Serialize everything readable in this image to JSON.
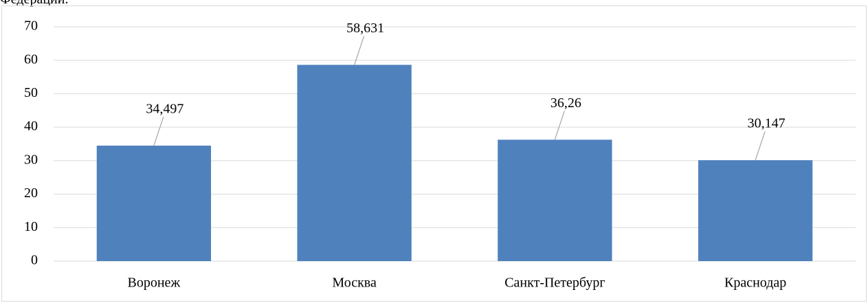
{
  "caption_fragment": "Федерации.",
  "chart_data": {
    "type": "bar",
    "categories": [
      "Воронеж",
      "Москва",
      "Санкт-Петербург",
      "Краснодар"
    ],
    "values": [
      34.497,
      58.631,
      36.26,
      30.147
    ],
    "value_labels": [
      "34,497",
      "58,631",
      "36,26",
      "30,147"
    ],
    "color": "#4f81bd",
    "ylim": [
      0,
      70
    ],
    "yticks": [
      0,
      10,
      20,
      30,
      40,
      50,
      60,
      70
    ],
    "grid": true
  }
}
